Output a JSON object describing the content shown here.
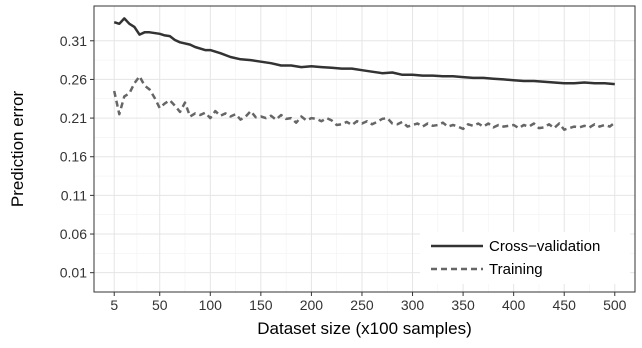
{
  "chart_data": {
    "type": "line",
    "title": "",
    "xlabel": "Dataset size (x100 samples)",
    "ylabel": "Prediction error",
    "xlim": [
      -15,
      520
    ],
    "ylim": [
      -0.015,
      0.355
    ],
    "x_ticks": [
      5,
      50,
      100,
      150,
      200,
      250,
      300,
      350,
      400,
      450,
      500
    ],
    "y_ticks": [
      0.01,
      0.06,
      0.11,
      0.16,
      0.21,
      0.26,
      0.31
    ],
    "grid": true,
    "legend_position": "bottom-right",
    "series": [
      {
        "name": "Cross−validation",
        "style": "solid",
        "color": "#333333",
        "x": [
          5,
          10,
          15,
          20,
          25,
          30,
          35,
          40,
          50,
          55,
          60,
          65,
          70,
          80,
          85,
          95,
          100,
          110,
          120,
          130,
          140,
          150,
          160,
          170,
          180,
          190,
          200,
          210,
          220,
          230,
          240,
          250,
          260,
          270,
          280,
          290,
          300,
          310,
          320,
          330,
          340,
          350,
          360,
          370,
          380,
          390,
          400,
          410,
          420,
          430,
          440,
          450,
          460,
          470,
          480,
          490,
          500
        ],
        "y": [
          0.334,
          0.332,
          0.339,
          0.332,
          0.328,
          0.318,
          0.321,
          0.321,
          0.319,
          0.317,
          0.316,
          0.311,
          0.308,
          0.305,
          0.302,
          0.298,
          0.298,
          0.294,
          0.289,
          0.286,
          0.285,
          0.283,
          0.281,
          0.278,
          0.278,
          0.276,
          0.277,
          0.276,
          0.275,
          0.274,
          0.274,
          0.272,
          0.27,
          0.268,
          0.269,
          0.266,
          0.266,
          0.265,
          0.265,
          0.264,
          0.264,
          0.263,
          0.262,
          0.262,
          0.261,
          0.26,
          0.259,
          0.258,
          0.258,
          0.257,
          0.256,
          0.255,
          0.255,
          0.256,
          0.255,
          0.255,
          0.254
        ]
      },
      {
        "name": "Training",
        "style": "dashed",
        "color": "#666666",
        "x": [
          5,
          10,
          15,
          20,
          25,
          30,
          35,
          40,
          45,
          50,
          55,
          60,
          65,
          70,
          75,
          80,
          85,
          90,
          95,
          100,
          105,
          110,
          115,
          120,
          125,
          130,
          135,
          140,
          145,
          150,
          155,
          160,
          165,
          170,
          175,
          180,
          185,
          190,
          195,
          200,
          205,
          210,
          215,
          220,
          225,
          230,
          235,
          240,
          245,
          250,
          255,
          260,
          265,
          270,
          275,
          280,
          285,
          290,
          295,
          300,
          305,
          310,
          315,
          320,
          325,
          330,
          335,
          340,
          345,
          350,
          355,
          360,
          365,
          370,
          375,
          380,
          385,
          390,
          395,
          400,
          405,
          410,
          415,
          420,
          425,
          430,
          435,
          440,
          445,
          450,
          455,
          460,
          465,
          470,
          475,
          480,
          485,
          490,
          495,
          500
        ],
        "y": [
          0.245,
          0.215,
          0.238,
          0.242,
          0.255,
          0.264,
          0.252,
          0.247,
          0.236,
          0.223,
          0.229,
          0.233,
          0.226,
          0.218,
          0.23,
          0.212,
          0.216,
          0.214,
          0.217,
          0.21,
          0.219,
          0.213,
          0.216,
          0.212,
          0.215,
          0.208,
          0.212,
          0.219,
          0.211,
          0.212,
          0.21,
          0.213,
          0.208,
          0.214,
          0.209,
          0.21,
          0.204,
          0.212,
          0.207,
          0.21,
          0.209,
          0.206,
          0.21,
          0.207,
          0.201,
          0.202,
          0.205,
          0.201,
          0.206,
          0.203,
          0.206,
          0.202,
          0.205,
          0.209,
          0.21,
          0.203,
          0.202,
          0.205,
          0.199,
          0.201,
          0.203,
          0.199,
          0.203,
          0.2,
          0.201,
          0.204,
          0.199,
          0.201,
          0.199,
          0.196,
          0.202,
          0.2,
          0.203,
          0.199,
          0.203,
          0.198,
          0.201,
          0.199,
          0.2,
          0.201,
          0.197,
          0.201,
          0.199,
          0.203,
          0.197,
          0.198,
          0.202,
          0.197,
          0.203,
          0.195,
          0.197,
          0.199,
          0.198,
          0.2,
          0.198,
          0.202,
          0.199,
          0.201,
          0.199,
          0.204
        ]
      }
    ]
  }
}
